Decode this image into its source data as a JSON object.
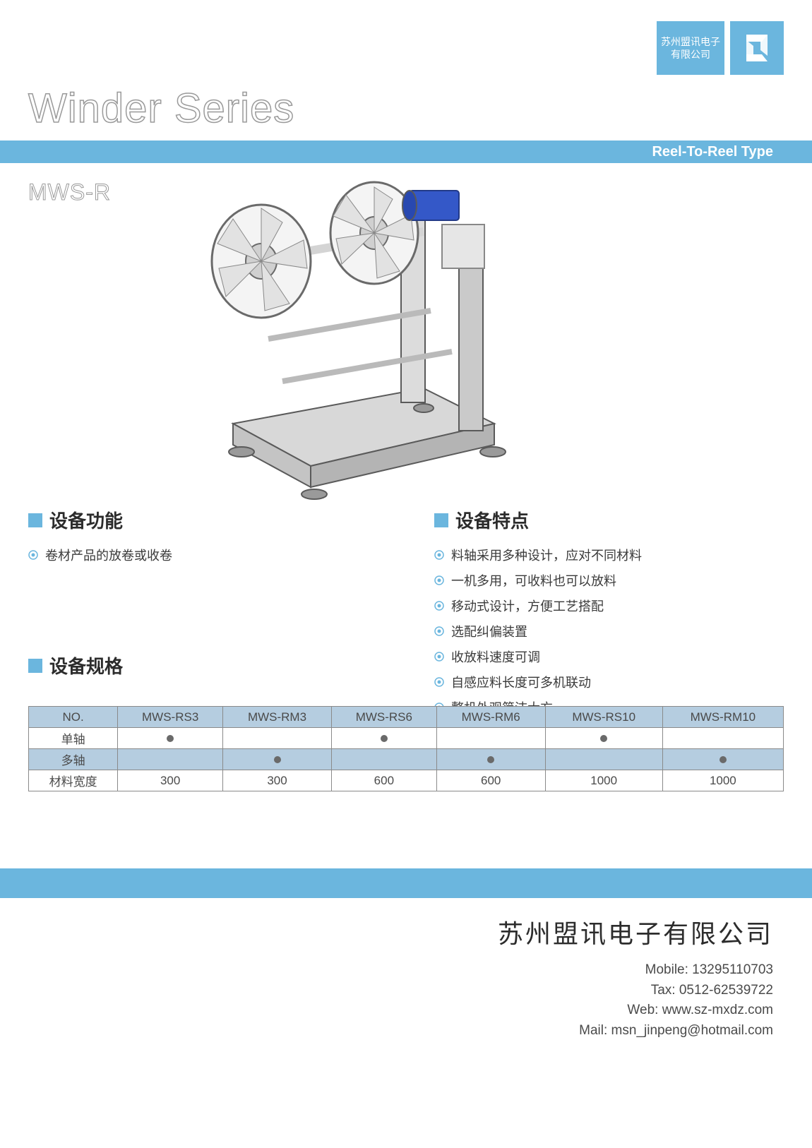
{
  "header": {
    "company_badge_line1": "苏州盟讯电子",
    "company_badge_line2": "有限公司",
    "main_title": "Winder Series",
    "subtitle_bar": "Reel-To-Reel Type",
    "model": "MWS-R"
  },
  "colors": {
    "accent": "#6bb6de",
    "text": "#3a3a3a",
    "outline": "#9a9a9a",
    "table_shade": "#b5cde0",
    "table_border": "#8a8a8a"
  },
  "sections": {
    "functions_title": "设备功能",
    "functions_items": [
      "卷材产品的放卷或收卷"
    ],
    "features_title": "设备特点",
    "features_items": [
      "料轴采用多种设计，应对不同材料",
      "一机多用，可收料也可以放料",
      "移动式设计，方便工艺搭配",
      "选配纠偏装置",
      "收放料速度可调",
      "自感应料长度可多机联动",
      "整机外观简洁大方"
    ],
    "specs_title": "设备规格"
  },
  "table": {
    "columns": [
      "NO.",
      "MWS-RS3",
      "MWS-RM3",
      "MWS-RS6",
      "MWS-RM6",
      "MWS-RS10",
      "MWS-RM10"
    ],
    "rows": [
      {
        "label": "单轴",
        "cells": [
          "●",
          "",
          "●",
          "",
          "●",
          ""
        ],
        "shaded": false
      },
      {
        "label": "多轴",
        "cells": [
          "",
          "●",
          "",
          "●",
          "",
          "●"
        ],
        "shaded": true
      },
      {
        "label": "材料宽度",
        "cells": [
          "300",
          "300",
          "600",
          "600",
          "1000",
          "1000"
        ],
        "shaded": false
      }
    ]
  },
  "footer": {
    "company": "苏州盟讯电子有限公司",
    "mobile_label": "Mobile: ",
    "mobile": "13295110703",
    "tax_label": "Tax: ",
    "tax": "0512-62539722",
    "web_label": "Web: ",
    "web": "www.sz-mxdz.com",
    "mail_label": "Mail: ",
    "mail": "msn_jinpeng@hotmail.com"
  }
}
